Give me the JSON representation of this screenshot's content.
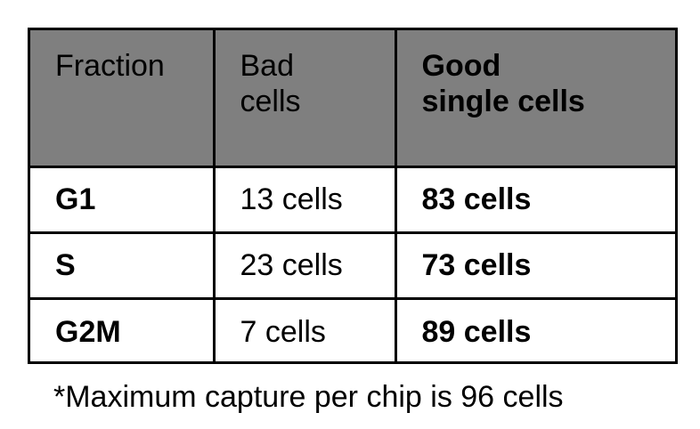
{
  "table": {
    "headers": [
      [
        "Fraction"
      ],
      [
        "Bad",
        "cells"
      ],
      [
        "Good",
        "single cells"
      ]
    ],
    "rows": [
      {
        "fraction": "G1",
        "bad": "13 cells",
        "good": "83 cells"
      },
      {
        "fraction": "S",
        "bad": "23 cells",
        "good": "73 cells"
      },
      {
        "fraction": "G2M",
        "bad": "7 cells",
        "good": "89 cells"
      }
    ]
  },
  "footnote": "*Maximum capture per chip is 96 cells",
  "colors": {
    "header_background": "#7f7f7f",
    "border": "#000000",
    "cell_background": "#ffffff",
    "text": "#000000"
  }
}
